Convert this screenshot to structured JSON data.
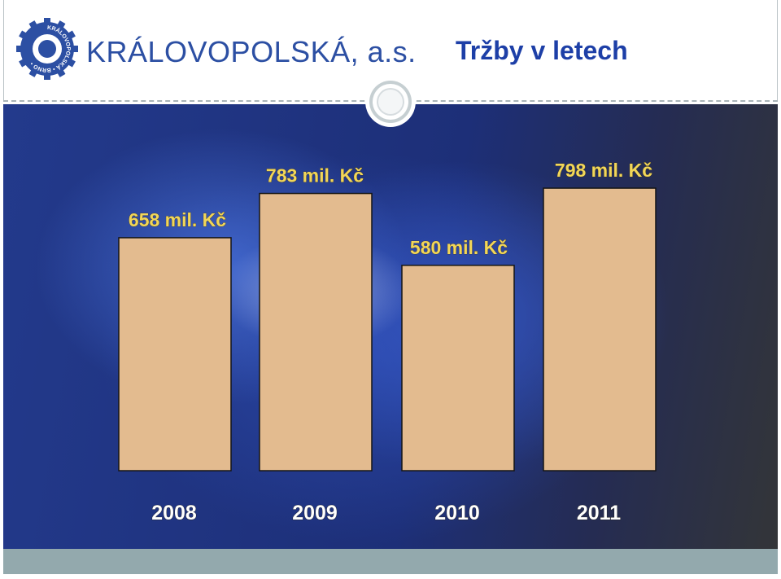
{
  "header": {
    "company_name": "KRÁLOVOPOLSKÁ, a.s.",
    "title": "Tržby v letech",
    "logo_ring_text": "KRÁLOVOPOLSKÁ • BRNO •"
  },
  "colors": {
    "bar_fill": "#e3bb8f",
    "label_color": "#f1d65a",
    "axis_text": "#ffffff",
    "logo_blue": "#2c4fa3",
    "title_blue": "#1d3fa7"
  },
  "chart_data": {
    "type": "bar",
    "categories": [
      "2008",
      "2009",
      "2010",
      "2011"
    ],
    "values": [
      658,
      783,
      580,
      798
    ],
    "data_labels": [
      "658 mil. Kč",
      "783 mil. Kč",
      "580 mil. Kč",
      "798 mil. Kč"
    ],
    "title": "Tržby v letech",
    "xlabel": "",
    "ylabel": "",
    "ylim": [
      0,
      1035
    ],
    "grid": false,
    "legend": "none"
  }
}
